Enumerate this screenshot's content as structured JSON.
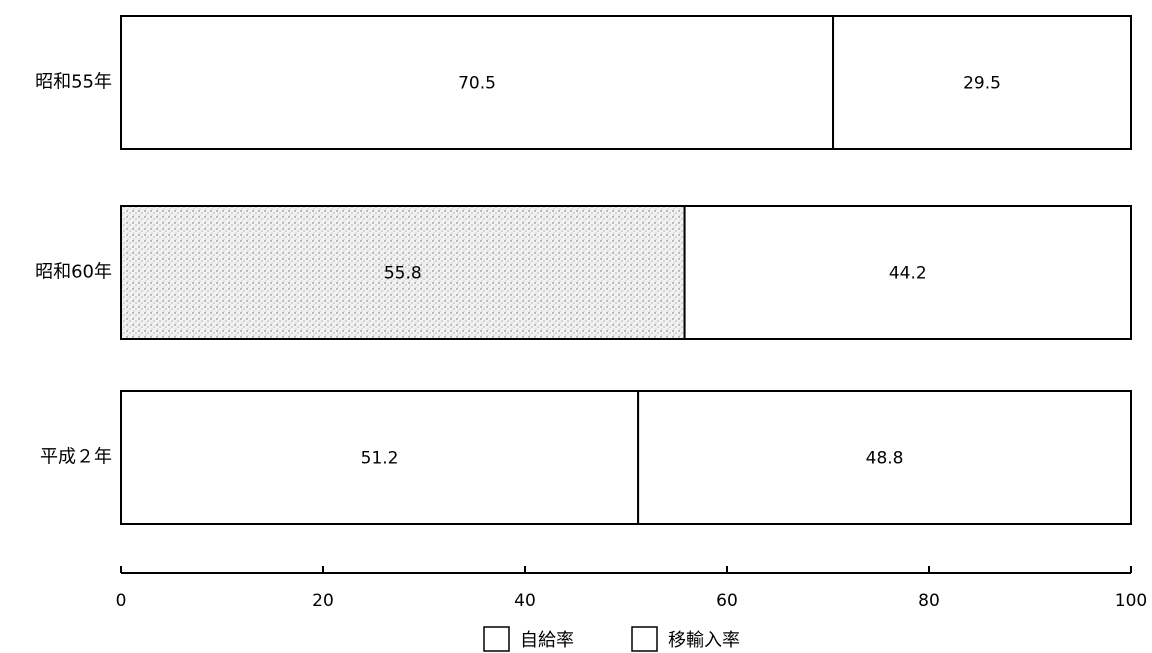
{
  "chart_data": {
    "type": "bar",
    "orientation": "horizontal",
    "stacked": true,
    "categories": [
      "昭和55年",
      "昭和60年",
      "平成２年"
    ],
    "series": [
      {
        "name": "自給率",
        "values": [
          70.5,
          55.8,
          51.2
        ]
      },
      {
        "name": "移輸入率",
        "values": [
          29.5,
          44.2,
          48.8
        ]
      }
    ],
    "highlighted_segment": {
      "category_index": 1,
      "series_index": 0,
      "fill": "stippled-gray"
    },
    "xlim": [
      0,
      100
    ],
    "xticks": [
      0,
      20,
      40,
      60,
      80,
      100
    ],
    "xtick_labels": [
      "0",
      "20",
      "40",
      "60",
      "80",
      "100"
    ],
    "legend": {
      "placement": "bottom-center",
      "items": [
        "自給率",
        "移輸入率"
      ]
    },
    "grid": false,
    "colors": {
      "bar_fill": "#ffffff",
      "bar_stroke": "#000000",
      "highlight_fill": "#d9d9d9"
    }
  }
}
